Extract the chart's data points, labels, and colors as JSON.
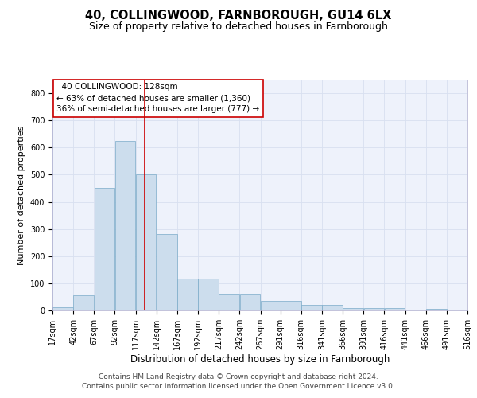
{
  "title": "40, COLLINGWOOD, FARNBOROUGH, GU14 6LX",
  "subtitle": "Size of property relative to detached houses in Farnborough",
  "xlabel": "Distribution of detached houses by size in Farnborough",
  "ylabel": "Number of detached properties",
  "bar_values": [
    12,
    55,
    450,
    625,
    500,
    280,
    117,
    117,
    63,
    63,
    35,
    35,
    20,
    20,
    10,
    10,
    8,
    0,
    7,
    0
  ],
  "bin_edges": [
    17,
    42,
    67,
    92,
    117,
    142,
    167,
    192,
    217,
    242,
    267,
    291,
    316,
    341,
    366,
    391,
    416,
    441,
    466,
    491,
    516
  ],
  "tick_labels": [
    "17sqm",
    "42sqm",
    "67sqm",
    "92sqm",
    "117sqm",
    "142sqm",
    "167sqm",
    "192sqm",
    "217sqm",
    "242sqm",
    "267sqm",
    "291sqm",
    "316sqm",
    "341sqm",
    "366sqm",
    "391sqm",
    "416sqm",
    "441sqm",
    "466sqm",
    "491sqm",
    "516sqm"
  ],
  "red_line_x": 128,
  "annotation_text": "  40 COLLINGWOOD: 128sqm\n← 63% of detached houses are smaller (1,360)\n36% of semi-detached houses are larger (777) →",
  "bar_color": "#ccdded",
  "bar_edgecolor": "#7aaac8",
  "red_line_color": "#cc0000",
  "grid_color": "#d8e0f0",
  "background_color": "#eef2fb",
  "ylim": [
    0,
    850
  ],
  "yticks": [
    0,
    100,
    200,
    300,
    400,
    500,
    600,
    700,
    800
  ],
  "footer": "Contains HM Land Registry data © Crown copyright and database right 2024.\nContains public sector information licensed under the Open Government Licence v3.0.",
  "title_fontsize": 10.5,
  "subtitle_fontsize": 9,
  "ylabel_fontsize": 8,
  "xlabel_fontsize": 8.5,
  "annotation_fontsize": 7.5,
  "footer_fontsize": 6.5,
  "tick_fontsize": 7
}
